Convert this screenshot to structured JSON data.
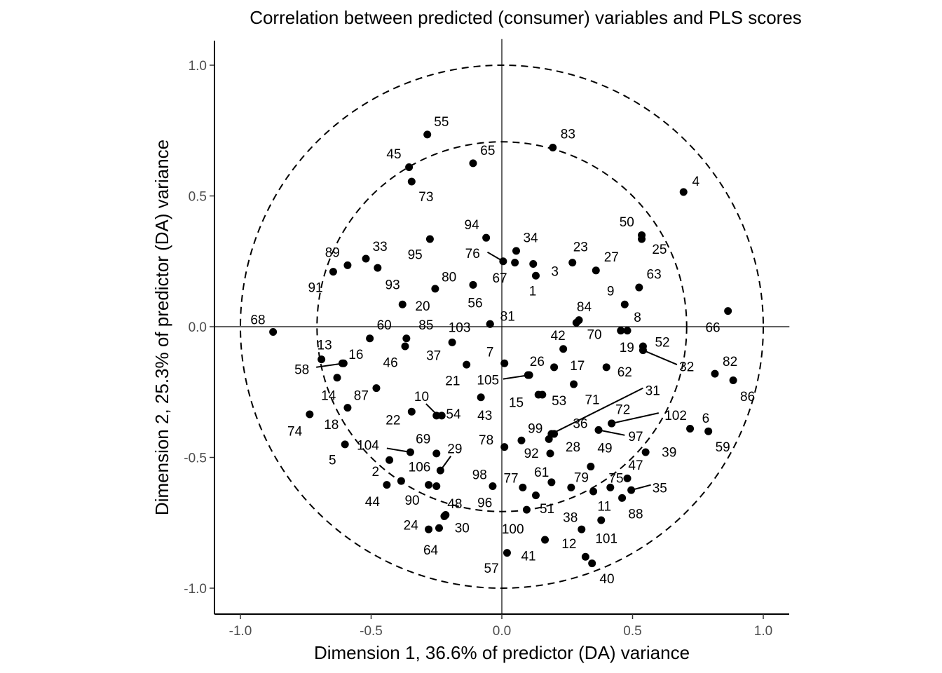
{
  "chart_data": {
    "type": "scatter",
    "title": "Correlation between predicted (consumer) variables and PLS scores",
    "xlabel": "Dimension 1, 36.6% of predictor (DA) variance",
    "ylabel": "Dimension 2, 25.3% of predictor (DA) variance",
    "xlim": [
      -1.1,
      1.1
    ],
    "ylim": [
      -1.1,
      1.1
    ],
    "xticks": [
      -1.0,
      -0.5,
      0.0,
      0.5,
      1.0
    ],
    "xtick_labels": [
      "-1.0",
      "-0.5",
      "0.0",
      "0.5",
      "1.0"
    ],
    "yticks": [
      -1.0,
      -0.5,
      0.0,
      0.5,
      1.0
    ],
    "ytick_labels": [
      "-1.0",
      "-0.5",
      "0.0",
      "0.5",
      "1.0"
    ],
    "circles": [
      {
        "radius": 1.0,
        "style": "dashed"
      },
      {
        "radius": 0.707,
        "style": "dashed"
      }
    ],
    "reference_lines": {
      "x": 0,
      "y": 0
    },
    "grid": false,
    "legend": "none",
    "point_color": "#000000",
    "points": [
      {
        "label": "1",
        "x": 0.13,
        "y": 0.195
      },
      {
        "label": "2",
        "x": -0.43,
        "y": -0.51
      },
      {
        "label": "3",
        "x": 0.12,
        "y": 0.24
      },
      {
        "label": "4",
        "x": 0.695,
        "y": 0.515
      },
      {
        "label": "5",
        "x": -0.6,
        "y": -0.45
      },
      {
        "label": "6",
        "x": 0.72,
        "y": -0.39
      },
      {
        "label": "7",
        "x": 0.01,
        "y": -0.14
      },
      {
        "label": "8",
        "x": 0.48,
        "y": -0.015
      },
      {
        "label": "9",
        "x": 0.47,
        "y": 0.085
      },
      {
        "label": "10",
        "x": -0.23,
        "y": -0.34
      },
      {
        "label": "11",
        "x": 0.38,
        "y": -0.74
      },
      {
        "label": "12",
        "x": 0.32,
        "y": -0.88
      },
      {
        "label": "13",
        "x": -0.69,
        "y": -0.125
      },
      {
        "label": "14",
        "x": -0.63,
        "y": -0.195
      },
      {
        "label": "15",
        "x": 0.14,
        "y": -0.26
      },
      {
        "label": "16",
        "x": -0.61,
        "y": -0.14
      },
      {
        "label": "17",
        "x": 0.2,
        "y": -0.155
      },
      {
        "label": "18",
        "x": -0.59,
        "y": -0.31
      },
      {
        "label": "19",
        "x": 0.455,
        "y": -0.015
      },
      {
        "label": "20",
        "x": -0.38,
        "y": 0.085
      },
      {
        "label": "21",
        "x": -0.135,
        "y": -0.145
      },
      {
        "label": "22",
        "x": -0.345,
        "y": -0.325
      },
      {
        "label": "23",
        "x": 0.27,
        "y": 0.245
      },
      {
        "label": "24",
        "x": -0.28,
        "y": -0.775
      },
      {
        "label": "25",
        "x": 0.535,
        "y": 0.335
      },
      {
        "label": "26",
        "x": 0.1,
        "y": -0.185
      },
      {
        "label": "27",
        "x": 0.36,
        "y": 0.215
      },
      {
        "label": "28",
        "x": 0.185,
        "y": -0.485
      },
      {
        "label": "29",
        "x": -0.235,
        "y": -0.55
      },
      {
        "label": "30",
        "x": -0.22,
        "y": -0.725
      },
      {
        "label": "31",
        "x": 0.19,
        "y": -0.41
      },
      {
        "label": "32",
        "x": 0.54,
        "y": -0.09
      },
      {
        "label": "33",
        "x": -0.52,
        "y": 0.26
      },
      {
        "label": "34",
        "x": 0.055,
        "y": 0.29
      },
      {
        "label": "35",
        "x": 0.495,
        "y": -0.625
      },
      {
        "label": "36",
        "x": 0.18,
        "y": -0.43
      },
      {
        "label": "37",
        "x": -0.19,
        "y": -0.06
      },
      {
        "label": "38",
        "x": 0.305,
        "y": -0.775
      },
      {
        "label": "39",
        "x": 0.55,
        "y": -0.48
      },
      {
        "label": "40",
        "x": 0.345,
        "y": -0.905
      },
      {
        "label": "41",
        "x": 0.165,
        "y": -0.815
      },
      {
        "label": "42",
        "x": 0.235,
        "y": -0.085
      },
      {
        "label": "43",
        "x": -0.08,
        "y": -0.27
      },
      {
        "label": "44",
        "x": -0.44,
        "y": -0.605
      },
      {
        "label": "45",
        "x": -0.355,
        "y": 0.61
      },
      {
        "label": "46",
        "x": -0.37,
        "y": -0.075
      },
      {
        "label": "47",
        "x": 0.48,
        "y": -0.58
      },
      {
        "label": "48",
        "x": -0.215,
        "y": -0.72
      },
      {
        "label": "49",
        "x": 0.34,
        "y": -0.535
      },
      {
        "label": "50",
        "x": 0.535,
        "y": 0.35
      },
      {
        "label": "51",
        "x": 0.095,
        "y": -0.7
      },
      {
        "label": "52",
        "x": 0.54,
        "y": -0.075
      },
      {
        "label": "53",
        "x": 0.155,
        "y": -0.26
      },
      {
        "label": "54",
        "x": -0.25,
        "y": -0.34
      },
      {
        "label": "55",
        "x": -0.285,
        "y": 0.735
      },
      {
        "label": "56",
        "x": -0.11,
        "y": 0.16
      },
      {
        "label": "57",
        "x": 0.02,
        "y": -0.865
      },
      {
        "label": "58",
        "x": -0.605,
        "y": -0.14
      },
      {
        "label": "59",
        "x": 0.79,
        "y": -0.4
      },
      {
        "label": "60",
        "x": -0.505,
        "y": -0.045
      },
      {
        "label": "61",
        "x": 0.19,
        "y": -0.595
      },
      {
        "label": "62",
        "x": 0.4,
        "y": -0.155
      },
      {
        "label": "63",
        "x": 0.525,
        "y": 0.15
      },
      {
        "label": "64",
        "x": -0.24,
        "y": -0.77
      },
      {
        "label": "65",
        "x": -0.11,
        "y": 0.625
      },
      {
        "label": "66",
        "x": 0.865,
        "y": 0.06
      },
      {
        "label": "67",
        "x": 0.05,
        "y": 0.245
      },
      {
        "label": "68",
        "x": -0.875,
        "y": -0.02
      },
      {
        "label": "69",
        "x": -0.25,
        "y": -0.485
      },
      {
        "label": "70",
        "x": 0.285,
        "y": 0.015
      },
      {
        "label": "71",
        "x": 0.275,
        "y": -0.22
      },
      {
        "label": "72",
        "x": 0.42,
        "y": -0.37
      },
      {
        "label": "73",
        "x": -0.345,
        "y": 0.555
      },
      {
        "label": "74",
        "x": -0.735,
        "y": -0.335
      },
      {
        "label": "75",
        "x": 0.415,
        "y": -0.615
      },
      {
        "label": "76",
        "x": 0.005,
        "y": 0.25
      },
      {
        "label": "77",
        "x": 0.08,
        "y": -0.615
      },
      {
        "label": "78",
        "x": 0.01,
        "y": -0.46
      },
      {
        "label": "79",
        "x": 0.265,
        "y": -0.615
      },
      {
        "label": "80",
        "x": -0.255,
        "y": 0.145
      },
      {
        "label": "81",
        "x": -0.045,
        "y": 0.01
      },
      {
        "label": "82",
        "x": 0.815,
        "y": -0.18
      },
      {
        "label": "83",
        "x": 0.195,
        "y": 0.685
      },
      {
        "label": "84",
        "x": 0.295,
        "y": 0.025
      },
      {
        "label": "85",
        "x": -0.365,
        "y": -0.045
      },
      {
        "label": "86",
        "x": 0.885,
        "y": -0.205
      },
      {
        "label": "87",
        "x": -0.48,
        "y": -0.235
      },
      {
        "label": "88",
        "x": 0.46,
        "y": -0.655
      },
      {
        "label": "89",
        "x": -0.645,
        "y": 0.21
      },
      {
        "label": "90",
        "x": -0.385,
        "y": -0.59
      },
      {
        "label": "91",
        "x": -0.59,
        "y": 0.235
      },
      {
        "label": "92",
        "x": 0.075,
        "y": -0.435
      },
      {
        "label": "93",
        "x": -0.475,
        "y": 0.225
      },
      {
        "label": "94",
        "x": -0.06,
        "y": 0.34
      },
      {
        "label": "95",
        "x": -0.275,
        "y": 0.335
      },
      {
        "label": "96",
        "x": -0.035,
        "y": -0.61
      },
      {
        "label": "97",
        "x": 0.37,
        "y": -0.395
      },
      {
        "label": "98",
        "x": -0.25,
        "y": -0.61
      },
      {
        "label": "99",
        "x": 0.2,
        "y": -0.41
      },
      {
        "label": "100",
        "x": 0.13,
        "y": -0.645
      },
      {
        "label": "101",
        "x": 0.35,
        "y": -0.63
      },
      {
        "label": "102",
        "x": 0.42,
        "y": -0.37
      },
      {
        "label": "103",
        "x": -0.045,
        "y": 0.01
      },
      {
        "label": "104",
        "x": -0.35,
        "y": -0.48
      },
      {
        "label": "105",
        "x": 0.105,
        "y": -0.185
      },
      {
        "label": "106",
        "x": -0.28,
        "y": -0.605
      }
    ],
    "labels": [
      {
        "label": "1",
        "x": 0.118,
        "y": 0.138
      },
      {
        "label": "2",
        "x": -0.483,
        "y": -0.552
      },
      {
        "label": "3",
        "x": 0.203,
        "y": 0.213
      },
      {
        "label": "4",
        "x": 0.742,
        "y": 0.558
      },
      {
        "label": "5",
        "x": -0.648,
        "y": -0.508
      },
      {
        "label": "6",
        "x": 0.78,
        "y": -0.348
      },
      {
        "label": "7",
        "x": -0.045,
        "y": -0.095
      },
      {
        "label": "8",
        "x": 0.519,
        "y": 0.038
      },
      {
        "label": "9",
        "x": 0.416,
        "y": 0.138
      },
      {
        "label": "10",
        "x": -0.307,
        "y": -0.265
      },
      {
        "label": "11",
        "x": 0.392,
        "y": -0.685
      },
      {
        "label": "12",
        "x": 0.257,
        "y": -0.828
      },
      {
        "label": "13",
        "x": -0.678,
        "y": -0.068
      },
      {
        "label": "14",
        "x": -0.663,
        "y": -0.262
      },
      {
        "label": "15",
        "x": 0.055,
        "y": -0.288
      },
      {
        "label": "16",
        "x": -0.558,
        "y": -0.105
      },
      {
        "label": "17",
        "x": 0.289,
        "y": -0.148
      },
      {
        "label": "18",
        "x": -0.652,
        "y": -0.372
      },
      {
        "label": "19",
        "x": 0.478,
        "y": -0.078
      },
      {
        "label": "20",
        "x": -0.303,
        "y": 0.08
      },
      {
        "label": "21",
        "x": -0.188,
        "y": -0.205
      },
      {
        "label": "22",
        "x": -0.416,
        "y": -0.355
      },
      {
        "label": "23",
        "x": 0.301,
        "y": 0.307
      },
      {
        "label": "24",
        "x": -0.348,
        "y": -0.757
      },
      {
        "label": "25",
        "x": 0.603,
        "y": 0.298
      },
      {
        "label": "26",
        "x": 0.135,
        "y": -0.132
      },
      {
        "label": "27",
        "x": 0.419,
        "y": 0.268
      },
      {
        "label": "28",
        "x": 0.272,
        "y": -0.458
      },
      {
        "label": "29",
        "x": -0.18,
        "y": -0.465
      },
      {
        "label": "30",
        "x": -0.152,
        "y": -0.768
      },
      {
        "label": "31",
        "x": 0.577,
        "y": -0.242
      },
      {
        "label": "32",
        "x": 0.707,
        "y": -0.152
      },
      {
        "label": "33",
        "x": -0.466,
        "y": 0.308
      },
      {
        "label": "34",
        "x": 0.11,
        "y": 0.342
      },
      {
        "label": "35",
        "x": 0.604,
        "y": -0.615
      },
      {
        "label": "36",
        "x": 0.3,
        "y": -0.368
      },
      {
        "label": "37",
        "x": -0.261,
        "y": -0.108
      },
      {
        "label": "38",
        "x": 0.262,
        "y": -0.728
      },
      {
        "label": "39",
        "x": 0.64,
        "y": -0.478
      },
      {
        "label": "40",
        "x": 0.402,
        "y": -0.962
      },
      {
        "label": "41",
        "x": 0.102,
        "y": -0.875
      },
      {
        "label": "42",
        "x": 0.215,
        "y": -0.032
      },
      {
        "label": "43",
        "x": -0.065,
        "y": -0.338
      },
      {
        "label": "44",
        "x": -0.495,
        "y": -0.668
      },
      {
        "label": "45",
        "x": -0.413,
        "y": 0.662
      },
      {
        "label": "46",
        "x": -0.426,
        "y": -0.135
      },
      {
        "label": "47",
        "x": 0.512,
        "y": -0.528
      },
      {
        "label": "48",
        "x": -0.18,
        "y": -0.675
      },
      {
        "label": "49",
        "x": 0.394,
        "y": -0.462
      },
      {
        "label": "50",
        "x": 0.478,
        "y": 0.402
      },
      {
        "label": "51",
        "x": 0.173,
        "y": -0.695
      },
      {
        "label": "52",
        "x": 0.614,
        "y": -0.058
      },
      {
        "label": "53",
        "x": 0.219,
        "y": -0.282
      },
      {
        "label": "54",
        "x": -0.185,
        "y": -0.332
      },
      {
        "label": "55",
        "x": -0.231,
        "y": 0.785
      },
      {
        "label": "56",
        "x": -0.102,
        "y": 0.092
      },
      {
        "label": "57",
        "x": -0.04,
        "y": -0.922
      },
      {
        "label": "58",
        "x": -0.765,
        "y": -0.162
      },
      {
        "label": "59",
        "x": 0.845,
        "y": -0.458
      },
      {
        "label": "60",
        "x": -0.45,
        "y": 0.008
      },
      {
        "label": "61",
        "x": 0.152,
        "y": -0.555
      },
      {
        "label": "62",
        "x": 0.47,
        "y": -0.172
      },
      {
        "label": "63",
        "x": 0.582,
        "y": 0.202
      },
      {
        "label": "64",
        "x": -0.272,
        "y": -0.852
      },
      {
        "label": "65",
        "x": -0.054,
        "y": 0.675
      },
      {
        "label": "66",
        "x": 0.807,
        "y": -0.002
      },
      {
        "label": "67",
        "x": -0.008,
        "y": 0.188
      },
      {
        "label": "68",
        "x": -0.933,
        "y": 0.028
      },
      {
        "label": "69",
        "x": -0.301,
        "y": -0.428
      },
      {
        "label": "70",
        "x": 0.354,
        "y": -0.028
      },
      {
        "label": "71",
        "x": 0.346,
        "y": -0.278
      },
      {
        "label": "72",
        "x": 0.463,
        "y": -0.315
      },
      {
        "label": "73",
        "x": -0.29,
        "y": 0.498
      },
      {
        "label": "74",
        "x": -0.792,
        "y": -0.398
      },
      {
        "label": "75",
        "x": 0.437,
        "y": -0.578
      },
      {
        "label": "76",
        "x": -0.112,
        "y": 0.282
      },
      {
        "label": "77",
        "x": 0.035,
        "y": -0.578
      },
      {
        "label": "78",
        "x": -0.06,
        "y": -0.432
      },
      {
        "label": "79",
        "x": 0.304,
        "y": -0.575
      },
      {
        "label": "80",
        "x": -0.202,
        "y": 0.192
      },
      {
        "label": "81",
        "x": 0.022,
        "y": 0.042
      },
      {
        "label": "82",
        "x": 0.873,
        "y": -0.132
      },
      {
        "label": "83",
        "x": 0.253,
        "y": 0.738
      },
      {
        "label": "84",
        "x": 0.315,
        "y": 0.078
      },
      {
        "label": "85",
        "x": -0.29,
        "y": 0.008
      },
      {
        "label": "86",
        "x": 0.94,
        "y": -0.265
      },
      {
        "label": "87",
        "x": -0.538,
        "y": -0.262
      },
      {
        "label": "88",
        "x": 0.512,
        "y": -0.715
      },
      {
        "label": "89",
        "x": -0.648,
        "y": 0.285
      },
      {
        "label": "90",
        "x": -0.343,
        "y": -0.662
      },
      {
        "label": "91",
        "x": -0.713,
        "y": 0.152
      },
      {
        "label": "92",
        "x": 0.113,
        "y": -0.482
      },
      {
        "label": "93",
        "x": -0.418,
        "y": 0.162
      },
      {
        "label": "94",
        "x": -0.115,
        "y": 0.392
      },
      {
        "label": "95",
        "x": -0.332,
        "y": 0.278
      },
      {
        "label": "96",
        "x": -0.065,
        "y": -0.672
      },
      {
        "label": "97",
        "x": 0.512,
        "y": -0.418
      },
      {
        "label": "98",
        "x": -0.085,
        "y": -0.565
      },
      {
        "label": "99",
        "x": 0.128,
        "y": -0.388
      },
      {
        "label": "100",
        "x": 0.042,
        "y": -0.772
      },
      {
        "label": "101",
        "x": 0.4,
        "y": -0.808
      },
      {
        "label": "102",
        "x": 0.665,
        "y": -0.338
      },
      {
        "label": "103",
        "x": -0.162,
        "y": -0.002
      },
      {
        "label": "104",
        "x": -0.512,
        "y": -0.452
      },
      {
        "label": "105",
        "x": -0.053,
        "y": -0.202
      },
      {
        "label": "106",
        "x": -0.315,
        "y": -0.535
      }
    ],
    "leader_lines": [
      {
        "label": "76",
        "from": [
          -0.055,
          0.285
        ],
        "to": [
          0.005,
          0.25
        ]
      },
      {
        "label": "58",
        "from": [
          -0.71,
          -0.155
        ],
        "to": [
          -0.605,
          -0.14
        ]
      },
      {
        "label": "10",
        "from": [
          -0.29,
          -0.295
        ],
        "to": [
          -0.25,
          -0.335
        ]
      },
      {
        "label": "29",
        "from": [
          -0.195,
          -0.495
        ],
        "to": [
          -0.235,
          -0.55
        ]
      },
      {
        "label": "104",
        "from": [
          -0.44,
          -0.465
        ],
        "to": [
          -0.35,
          -0.48
        ]
      },
      {
        "label": "105",
        "from": [
          0.005,
          -0.2
        ],
        "to": [
          0.105,
          -0.185
        ]
      },
      {
        "label": "32",
        "from": [
          0.67,
          -0.145
        ],
        "to": [
          0.54,
          -0.09
        ]
      },
      {
        "label": "31",
        "from": [
          0.54,
          -0.235
        ],
        "to": [
          0.19,
          -0.41
        ]
      },
      {
        "label": "102",
        "from": [
          0.6,
          -0.33
        ],
        "to": [
          0.42,
          -0.37
        ]
      },
      {
        "label": "97",
        "from": [
          0.47,
          -0.415
        ],
        "to": [
          0.37,
          -0.395
        ]
      },
      {
        "label": "35",
        "from": [
          0.57,
          -0.605
        ],
        "to": [
          0.495,
          -0.625
        ]
      }
    ]
  }
}
